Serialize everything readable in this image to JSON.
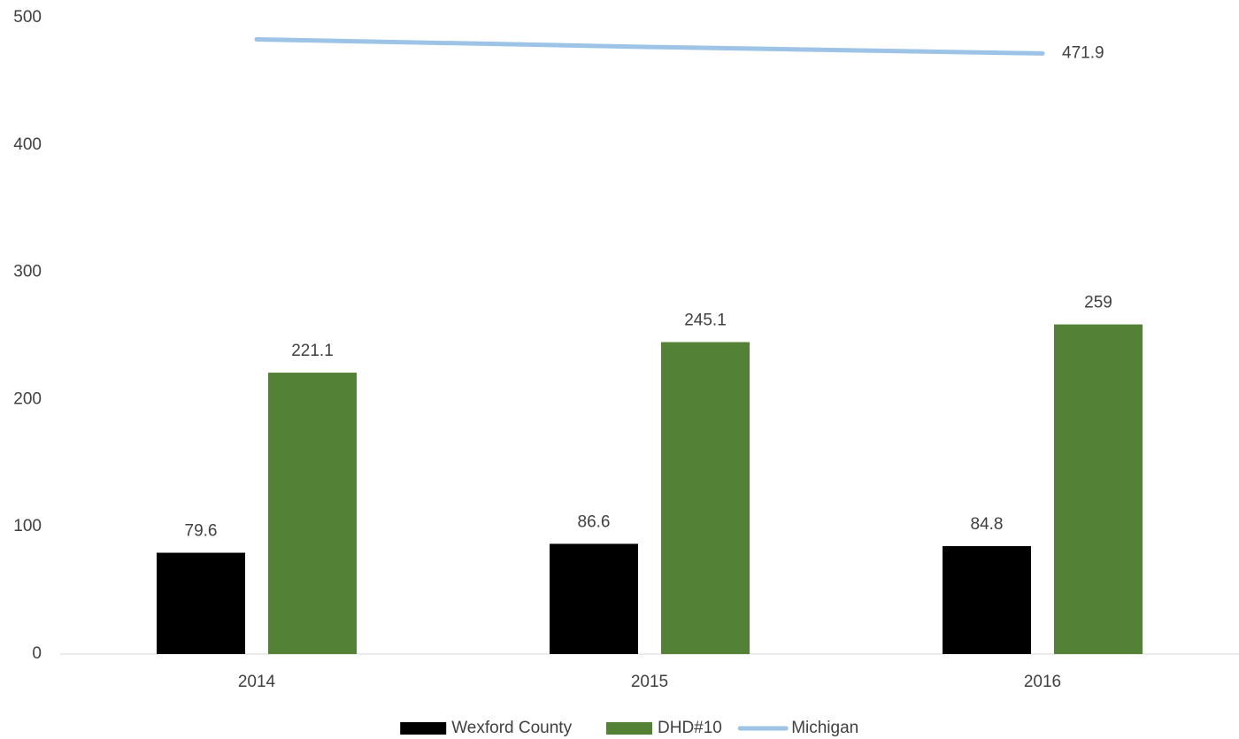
{
  "chart_data": {
    "type": "bar",
    "categories": [
      "2014",
      "2015",
      "2016"
    ],
    "series": [
      {
        "name": "Wexford County",
        "color": "#000000",
        "type": "bar",
        "values": [
          79.6,
          86.6,
          84.8
        ],
        "data_labels": "all"
      },
      {
        "name": "DHD#10",
        "color": "#538135",
        "type": "bar",
        "values": [
          221.1,
          245.1,
          259
        ],
        "data_labels": "all"
      },
      {
        "name": "Michigan",
        "color": "#9dc3e6",
        "type": "line",
        "values": [
          483,
          477,
          471.9
        ],
        "data_labels": "last"
      }
    ],
    "ylim": [
      0,
      500
    ],
    "yticks": [
      0,
      100,
      200,
      300,
      400,
      500
    ],
    "grid": false,
    "legend": "bottom"
  }
}
